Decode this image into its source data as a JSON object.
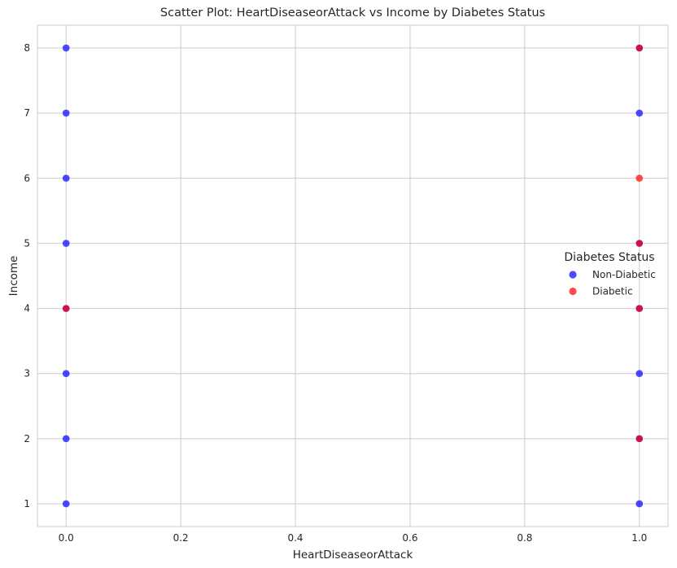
{
  "chart_data": {
    "type": "scatter",
    "title": "Scatter Plot: HeartDiseaseorAttack vs Income by Diabetes Status",
    "xlabel": "HeartDiseaseorAttack",
    "ylabel": "Income",
    "xlim": [
      -0.05,
      1.05
    ],
    "ylim": [
      0.65,
      8.35
    ],
    "xticks": [
      "0.0",
      "0.2",
      "0.4",
      "0.6",
      "0.8",
      "1.0"
    ],
    "yticks": [
      "1",
      "2",
      "3",
      "4",
      "5",
      "6",
      "7",
      "8"
    ],
    "grid": true,
    "legend": {
      "title": "Diabetes Status",
      "position": "center-right"
    },
    "series": [
      {
        "name": "Non-Diabetic",
        "color": "#0000ff",
        "points": [
          [
            0,
            1
          ],
          [
            0,
            2
          ],
          [
            0,
            3
          ],
          [
            0,
            4
          ],
          [
            0,
            5
          ],
          [
            0,
            6
          ],
          [
            0,
            7
          ],
          [
            0,
            8
          ],
          [
            1,
            1
          ],
          [
            1,
            2
          ],
          [
            1,
            3
          ],
          [
            1,
            4
          ],
          [
            1,
            5
          ],
          [
            1,
            7
          ],
          [
            1,
            8
          ]
        ]
      },
      {
        "name": "Diabetic",
        "color": "#ff0000",
        "points": [
          [
            0,
            4
          ],
          [
            1,
            2
          ],
          [
            1,
            4
          ],
          [
            1,
            5
          ],
          [
            1,
            6
          ],
          [
            1,
            8
          ]
        ]
      }
    ]
  }
}
